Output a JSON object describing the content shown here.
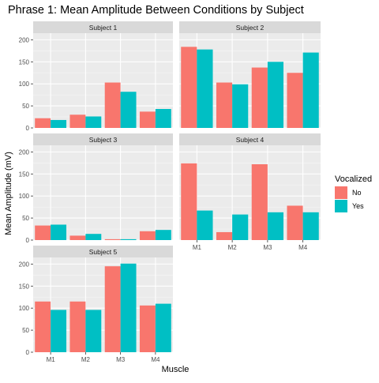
{
  "chart_data": {
    "type": "bar",
    "title": "Phrase 1: Mean Amplitude Between Conditions by Subject",
    "xlabel": "Muscle",
    "ylabel": "Mean Amplitude (mV)",
    "categories": [
      "M1",
      "M2",
      "M3",
      "M4"
    ],
    "ylim": [
      0,
      215
    ],
    "yticks": [
      0,
      50,
      100,
      150,
      200
    ],
    "grid": true,
    "legend": {
      "title": "Vocalized",
      "position": "right",
      "entries": [
        {
          "label": "No",
          "color": "#F8766D"
        },
        {
          "label": "Yes",
          "color": "#00BFC4"
        }
      ]
    },
    "facets": [
      {
        "label": "Subject 1",
        "series": [
          {
            "name": "No",
            "values": [
              22,
              30,
              103,
              37
            ]
          },
          {
            "name": "Yes",
            "values": [
              18,
              26,
              82,
              43
            ]
          }
        ]
      },
      {
        "label": "Subject 2",
        "series": [
          {
            "name": "No",
            "values": [
              184,
              103,
              137,
              125
            ]
          },
          {
            "name": "Yes",
            "values": [
              178,
              99,
              150,
              171
            ]
          }
        ]
      },
      {
        "label": "Subject 3",
        "series": [
          {
            "name": "No",
            "values": [
              33,
              10,
              2,
              20
            ]
          },
          {
            "name": "Yes",
            "values": [
              35,
              14,
              2,
              23
            ]
          }
        ]
      },
      {
        "label": "Subject 4",
        "series": [
          {
            "name": "No",
            "values": [
              174,
              18,
              172,
              78
            ]
          },
          {
            "name": "Yes",
            "values": [
              67,
              58,
              63,
              63
            ]
          }
        ]
      },
      {
        "label": "Subject 5",
        "series": [
          {
            "name": "No",
            "values": [
              115,
              115,
              195,
              106
            ]
          },
          {
            "name": "Yes",
            "values": [
              96,
              96,
              201,
              110
            ]
          }
        ]
      }
    ]
  }
}
